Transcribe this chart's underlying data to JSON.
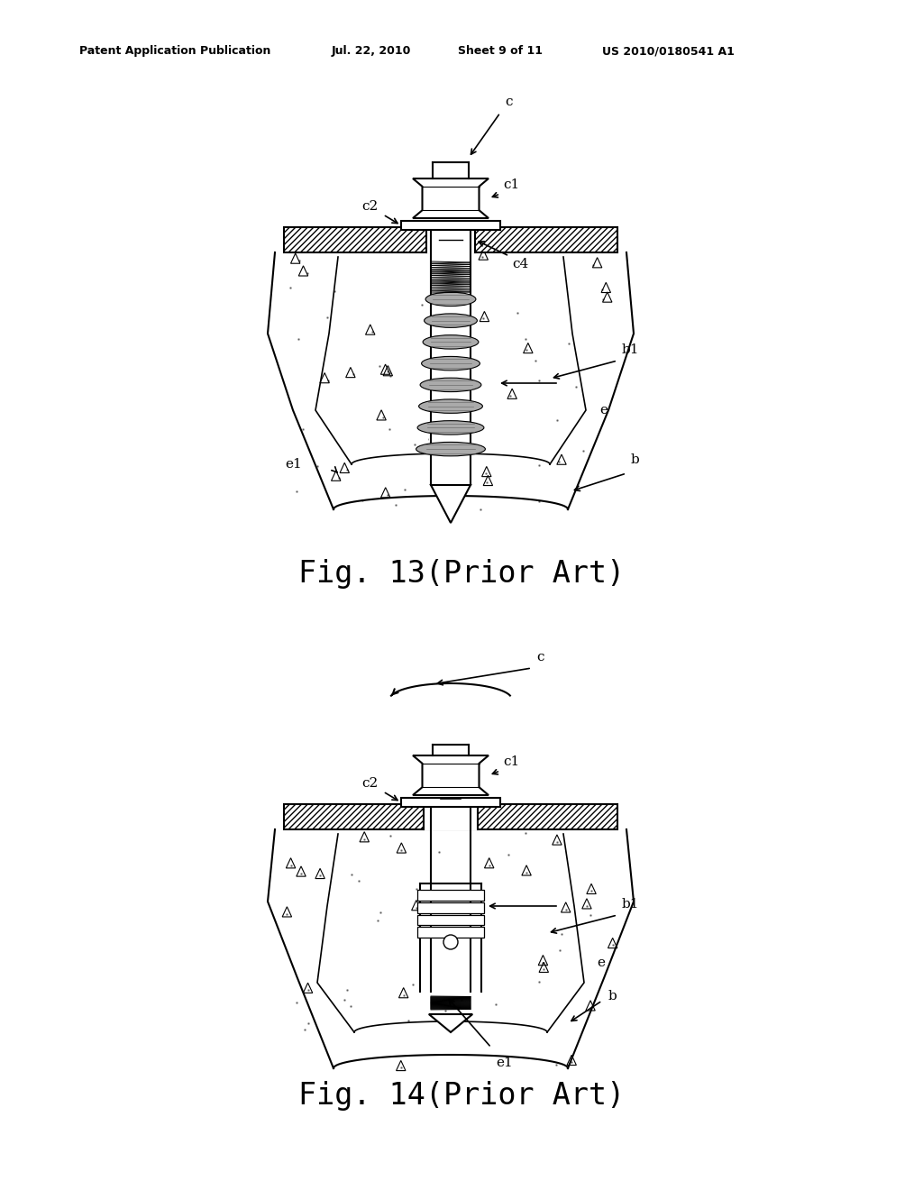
{
  "bg_color": "#ffffff",
  "line_color": "#000000",
  "header_text": "Patent Application Publication",
  "header_date": "Jul. 22, 2010",
  "header_sheet": "Sheet 9 of 11",
  "header_patent": "US 2010/0180541 A1",
  "fig13_label": "Fig. 13(Prior Art)",
  "fig14_label": "Fig. 14(Prior Art)"
}
